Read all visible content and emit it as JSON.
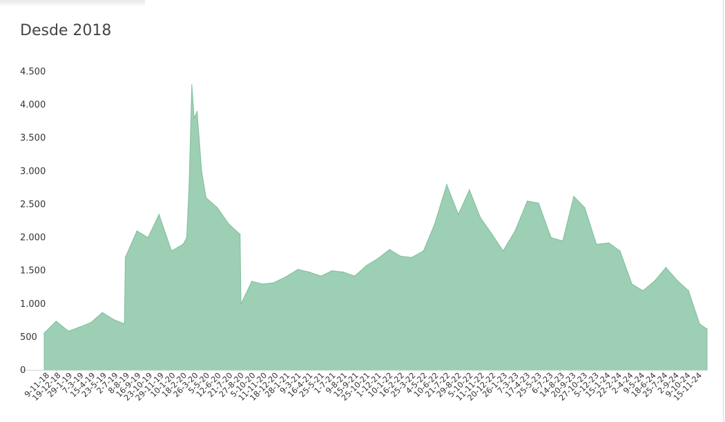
{
  "header": {
    "title": "Desde 2018"
  },
  "colors": {
    "area": "#9ccfb3",
    "area_stroke": "#7fbf9c",
    "axis": "#cccccc",
    "text": "#333333"
  },
  "chart_data": {
    "type": "area",
    "title": "Desde 2018",
    "xlabel": "",
    "ylabel": "",
    "ylim": [
      0,
      4500
    ],
    "grid": false,
    "y_ticks": [
      {
        "value": 0,
        "label": "0"
      },
      {
        "value": 500,
        "label": "500"
      },
      {
        "value": 1000,
        "label": "1.000"
      },
      {
        "value": 1500,
        "label": "1.500"
      },
      {
        "value": 2000,
        "label": "2.000"
      },
      {
        "value": 2500,
        "label": "2.500"
      },
      {
        "value": 3000,
        "label": "3.000"
      },
      {
        "value": 3500,
        "label": "3.500"
      },
      {
        "value": 4000,
        "label": "4.000"
      },
      {
        "value": 4500,
        "label": "4.500"
      }
    ],
    "x_ticks": [
      "9-11-18",
      "19-12-18",
      "29-1-19",
      "7-3-19",
      "15-4-19",
      "23-5-19",
      "2-7-19",
      "8-8-19",
      "16-9-19",
      "23-10-19",
      "29-11-19",
      "10-1-20",
      "18-2-20",
      "26-3-20",
      "5-5-20",
      "12-6-20",
      "21-7-20",
      "27-8-20",
      "5-10-20",
      "11-11-20",
      "18-12-20",
      "28-1-21",
      "9-3-21",
      "16-4-21",
      "25-5-21",
      "1-7-21",
      "9-8-21",
      "15-9-21",
      "25-10-21",
      "1-12-21",
      "10-1-22",
      "16-2-22",
      "25-3-22",
      "4-5-22",
      "10-6-22",
      "21-7-22",
      "29-8-22",
      "5-10-22",
      "11-11-22",
      "20-12-22",
      "26-1-23",
      "7-3-23",
      "17-4-23",
      "25-5-23",
      "6-7-23",
      "14-8-23",
      "20-9-23",
      "27-10-23",
      "5-12-23",
      "15-1-24",
      "22-2-24",
      "2-4-24",
      "9-5-24",
      "18-6-24",
      "25-7-24",
      "2-9-24",
      "9-10-24",
      "15-11-24"
    ],
    "series": [
      {
        "x": [
          "9-11-18",
          "19-12-18",
          "29-1-19",
          "7-3-19",
          "15-4-19",
          "23-5-19",
          "2-7-19",
          "5-8-19",
          "8-8-19",
          "16-9-19",
          "23-10-19",
          "29-11-19",
          "10-1-20",
          "18-2-20",
          "1-3-20",
          "9-3-20",
          "18-3-20",
          "26-3-20",
          "5-4-20",
          "20-4-20",
          "5-5-20",
          "12-6-20",
          "21-7-20",
          "27-8-20",
          "30-8-20",
          "5-10-20",
          "11-11-20",
          "18-12-20",
          "28-1-21",
          "9-3-21",
          "16-4-21",
          "25-5-21",
          "1-7-21",
          "9-8-21",
          "15-9-21",
          "25-10-21",
          "1-12-21",
          "10-1-22",
          "16-2-22",
          "25-3-22",
          "4-5-22",
          "10-6-22",
          "21-7-22",
          "29-8-22",
          "5-10-22",
          "11-11-22",
          "20-12-22",
          "26-1-23",
          "7-3-23",
          "17-4-23",
          "25-5-23",
          "6-7-23",
          "14-8-23",
          "20-9-23",
          "27-10-23",
          "5-12-23",
          "15-1-24",
          "22-2-24",
          "2-4-24",
          "9-5-24",
          "18-6-24",
          "25-7-24",
          "2-9-24",
          "9-10-24",
          "15-11-24",
          "10-12-24"
        ],
        "values": [
          560,
          740,
          590,
          650,
          720,
          870,
          760,
          700,
          1700,
          2100,
          2000,
          2350,
          1800,
          1900,
          2000,
          2800,
          4300,
          3800,
          3900,
          3000,
          2600,
          2450,
          2200,
          2050,
          1000,
          1340,
          1300,
          1320,
          1410,
          1520,
          1480,
          1420,
          1500,
          1480,
          1420,
          1580,
          1680,
          1820,
          1720,
          1700,
          1800,
          2200,
          2800,
          2350,
          2720,
          2300,
          2050,
          1800,
          2100,
          2550,
          2520,
          2000,
          1950,
          2620,
          2450,
          1900,
          1920,
          1800,
          1300,
          1200,
          1350,
          1550,
          1350,
          1200,
          700,
          620
        ]
      }
    ]
  }
}
